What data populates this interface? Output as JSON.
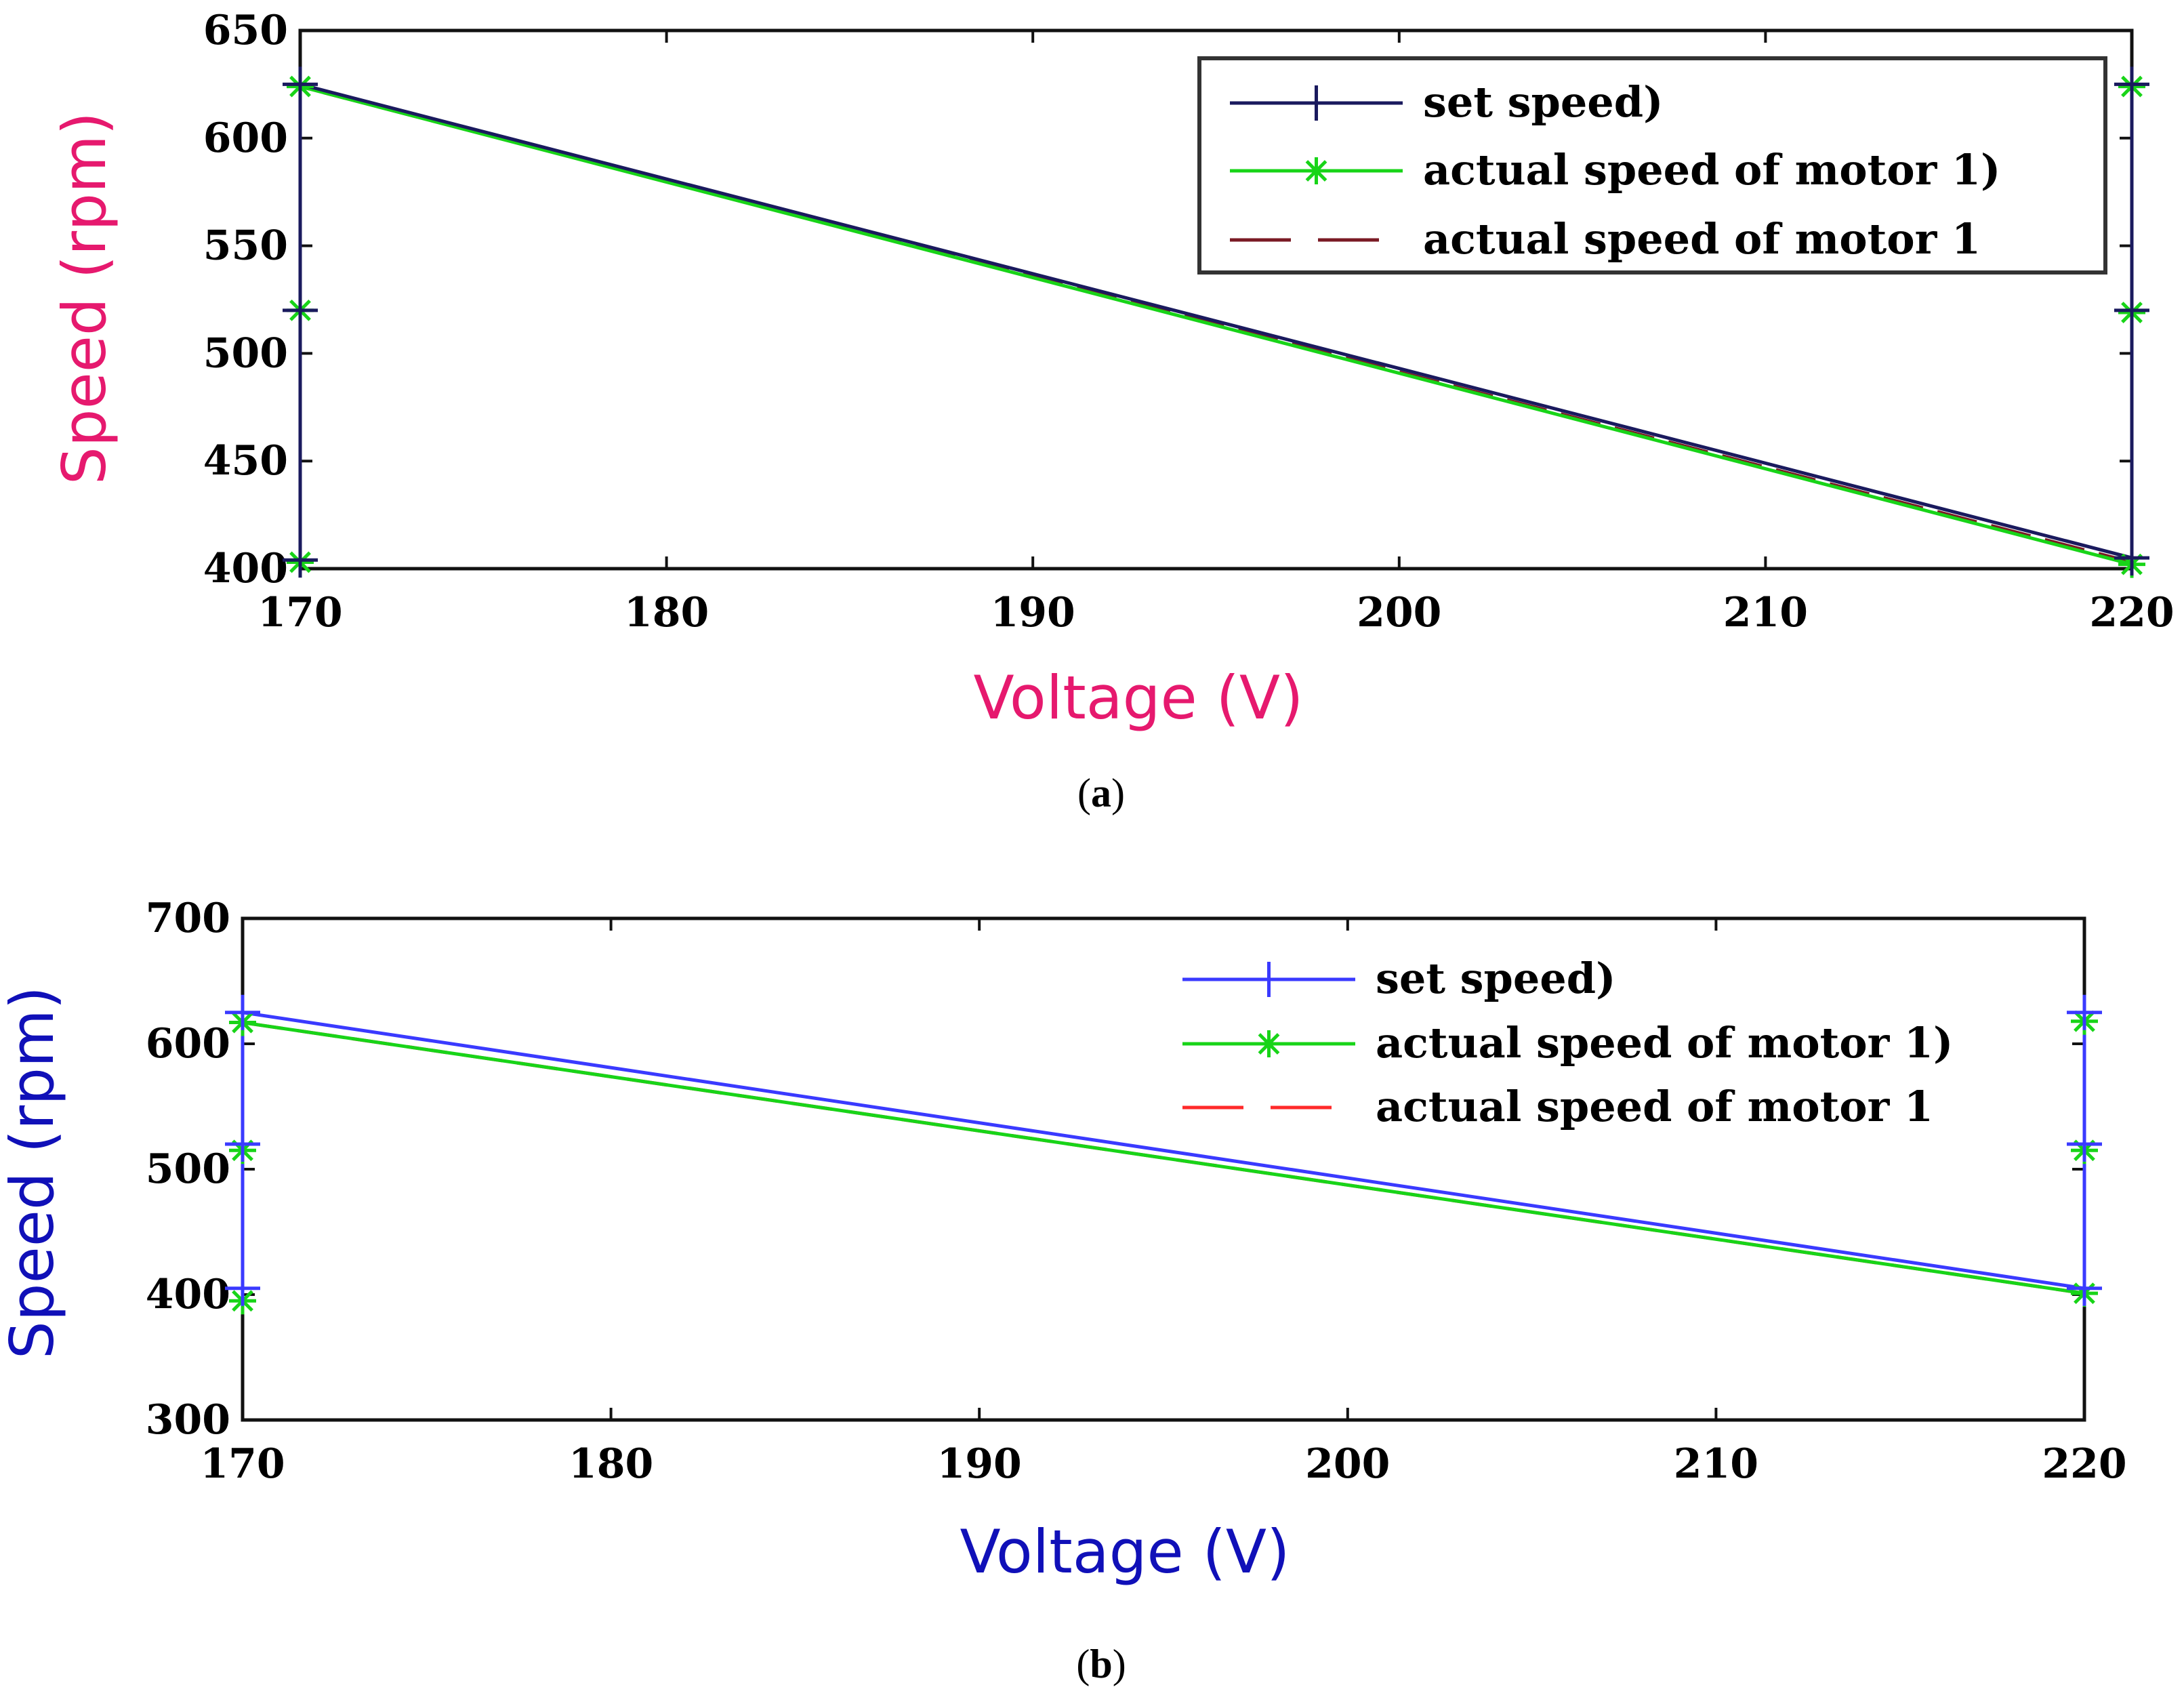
{
  "chart_data": [
    {
      "panel": "(a)",
      "panel_letter": "a",
      "type": "line",
      "xlabel": "Voltage (V)",
      "ylabel": "Speed (rpm)",
      "xlim": [
        170,
        220
      ],
      "ylim": [
        400,
        650
      ],
      "xticks": [
        170,
        180,
        190,
        200,
        210,
        220
      ],
      "yticks": [
        400,
        450,
        500,
        550,
        600,
        650
      ],
      "xtick_labels": [
        "170",
        "180",
        "190",
        "200",
        "210",
        "220"
      ],
      "ytick_labels": [
        "400",
        "450",
        "500",
        "550",
        "600",
        "650"
      ],
      "legend_position": "top-right",
      "label_color": "#e6196e",
      "series": [
        {
          "name": "set speed)",
          "color": "#1a1a5e",
          "style": "solid",
          "marker": "plus",
          "x": [
            170,
            170,
            170,
            220,
            220,
            220
          ],
          "y": [
            404,
            520,
            625,
            405,
            520,
            625
          ]
        },
        {
          "name": "actual speed of motor 1)",
          "color": "#18d418",
          "style": "solid",
          "marker": "star",
          "x": [
            170,
            170,
            170,
            220,
            220,
            220
          ],
          "y": [
            403,
            520,
            624,
            402,
            519,
            624
          ]
        },
        {
          "name": "actual speed of motor 1",
          "color": "#7a1a24",
          "style": "dashed",
          "marker": "none",
          "x": [
            170,
            170,
            170,
            220,
            220,
            220
          ],
          "y": [
            403,
            520,
            624,
            403,
            520,
            624
          ]
        }
      ]
    },
    {
      "panel": "(b)",
      "panel_letter": "b",
      "type": "line",
      "xlabel": "Voltage (V)",
      "ylabel": "Speed (rpm)",
      "xlim": [
        170,
        220
      ],
      "ylim": [
        300,
        700
      ],
      "xticks": [
        170,
        180,
        190,
        200,
        210,
        220
      ],
      "yticks": [
        300,
        400,
        500,
        600,
        700
      ],
      "xtick_labels": [
        "170",
        "180",
        "190",
        "200",
        "210",
        "220"
      ],
      "ytick_labels": [
        "300",
        "400",
        "500",
        "600",
        "700"
      ],
      "legend_position": "top-right",
      "label_color": "#1010b8",
      "series": [
        {
          "name": "set speed)",
          "color": "#3a3aff",
          "style": "solid",
          "marker": "plus",
          "x": [
            170,
            170,
            170,
            220,
            220,
            220
          ],
          "y": [
            405,
            520,
            625,
            405,
            520,
            625
          ]
        },
        {
          "name": "actual speed of motor 1)",
          "color": "#18d418",
          "style": "solid",
          "marker": "star",
          "x": [
            170,
            170,
            170,
            220,
            220,
            220
          ],
          "y": [
            395,
            515,
            617,
            401,
            515,
            618
          ]
        },
        {
          "name": "actual speed of motor 1",
          "color": "#ff2a2a",
          "style": "dashed",
          "marker": "none",
          "x": [
            170,
            170,
            170,
            220,
            220,
            220
          ],
          "y": [
            395,
            515,
            617,
            401,
            515,
            618
          ]
        }
      ]
    }
  ]
}
